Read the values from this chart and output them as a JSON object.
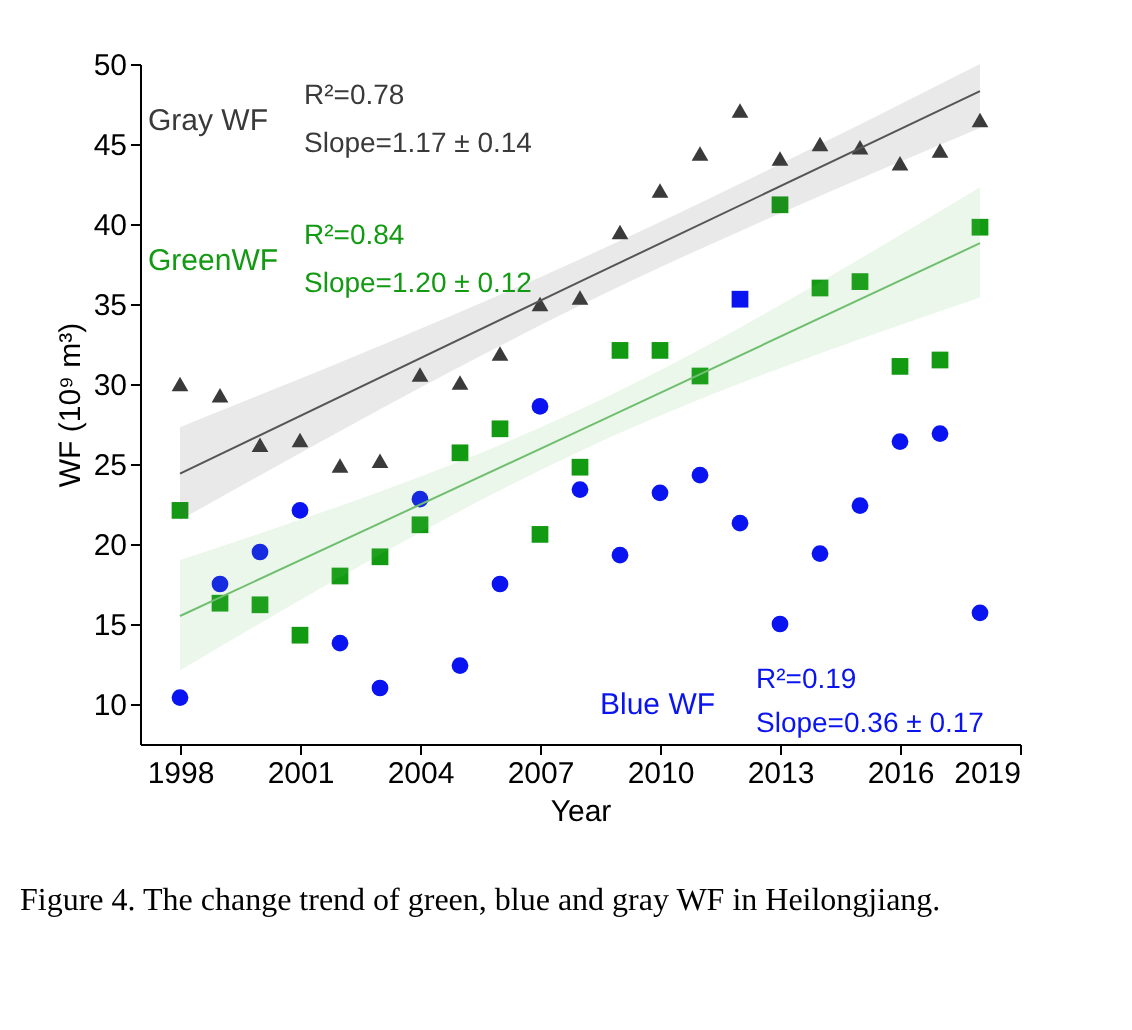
{
  "chart_data": {
    "type": "scatter",
    "xlabel": "Year",
    "ylabel": "WF (10⁹ m³)",
    "x": [
      1998,
      1999,
      2000,
      2001,
      2002,
      2003,
      2004,
      2005,
      2006,
      2007,
      2008,
      2009,
      2010,
      2011,
      2012,
      2013,
      2014,
      2015,
      2016,
      2017,
      2018
    ],
    "series": [
      {
        "name": "Gray WF",
        "marker": "triangle",
        "color": "#3a3a3a",
        "values": [
          30.0,
          29.3,
          26.2,
          26.5,
          24.9,
          25.2,
          30.6,
          30.1,
          31.9,
          35.0,
          35.4,
          39.5,
          42.1,
          44.4,
          47.1,
          44.1,
          45.0,
          44.8,
          43.8,
          44.6,
          46.5
        ]
      },
      {
        "name": "GreenWF",
        "marker": "square",
        "color": "#139a13",
        "colors": [
          "#139a13",
          "#139a13",
          "#139a13",
          "#139a13",
          "#139a13",
          "#139a13",
          "#139a13",
          "#139a13",
          "#139a13",
          "#139a13",
          "#139a13",
          "#139a13",
          "#139a13",
          "#139a13",
          "#0a14f0",
          "#139a13",
          "#139a13",
          "#139a13",
          "#139a13",
          "#139a13",
          "#139a13"
        ],
        "values": [
          22.1,
          16.3,
          16.2,
          14.3,
          18.0,
          19.2,
          21.2,
          25.7,
          27.2,
          20.6,
          24.8,
          32.1,
          32.1,
          30.5,
          35.3,
          41.2,
          36.0,
          36.4,
          31.1,
          31.5,
          39.8
        ]
      },
      {
        "name": "Blue WF",
        "marker": "circle",
        "color": "#0a14f0",
        "values": [
          10.4,
          17.5,
          19.5,
          22.1,
          13.8,
          11.0,
          22.8,
          12.4,
          17.5,
          28.6,
          23.4,
          19.3,
          23.2,
          24.3,
          21.3,
          15.0,
          19.4,
          22.4,
          26.4,
          26.9,
          15.7
        ]
      },
      {
        "type": "line",
        "color": "#555555",
        "x": [
          1998,
          2008,
          2018
        ],
        "values": [
          24.4,
          36.4,
          48.3
        ],
        "lower": [
          21.5,
          34.9,
          46.0
        ],
        "upper": [
          27.3,
          37.8,
          50.0
        ]
      },
      {
        "type": "line",
        "color": "#6fbf6f",
        "x": [
          1998,
          2008,
          2018
        ],
        "values": [
          15.5,
          27.1,
          38.8
        ],
        "lower": [
          12.1,
          25.8,
          35.4
        ],
        "upper": [
          19.0,
          28.4,
          42.3
        ]
      }
    ],
    "xlim": [
      1997,
      2019
    ],
    "xticks": [
      1998,
      2001,
      2004,
      2007,
      2010,
      2013,
      2016,
      2019
    ],
    "ylim": [
      7.5,
      50
    ],
    "yticks": [
      10,
      15,
      20,
      25,
      30,
      35,
      40,
      45,
      50
    ],
    "grid": false,
    "legend": false,
    "annotations": [
      "R²=0.78",
      "Slope=1.17 ± 0.14",
      "R²=0.84",
      "Slope=1.20 ± 0.12",
      "R²=0.19",
      "Slope=0.36 ± 0.17",
      "Figure 4. The change trend of green, blue and gray WF in Heilongjiang."
    ]
  }
}
